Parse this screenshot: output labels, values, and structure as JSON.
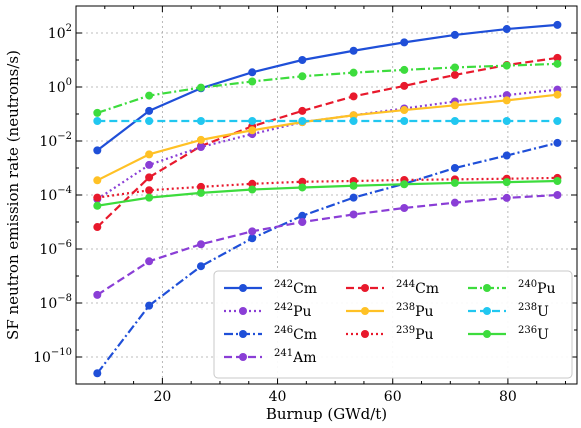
{
  "chart_data": {
    "type": "line",
    "title": "",
    "xlabel": "Burnup (GWd/t)",
    "ylabel": "SF neutron emission rate (neutrons/s)",
    "x": [
      8.7,
      17.7,
      26.7,
      35.6,
      44.3,
      53.2,
      62.0,
      70.8,
      79.8,
      88.6
    ],
    "xlim": [
      5,
      92
    ],
    "xticks": [
      20,
      40,
      60,
      80
    ],
    "ylim": [
      1e-11,
      1000
    ],
    "yscale": "log",
    "yticks": [
      {
        "value": 1e-10,
        "base": "10",
        "exp": "−10"
      },
      {
        "value": 1e-08,
        "base": "10",
        "exp": "−8"
      },
      {
        "value": 1e-06,
        "base": "10",
        "exp": "−6"
      },
      {
        "value": 0.0001,
        "base": "10",
        "exp": "−4"
      },
      {
        "value": 0.01,
        "base": "10",
        "exp": "−2"
      },
      {
        "value": 1,
        "base": "10",
        "exp": "0"
      },
      {
        "value": 100,
        "base": "10",
        "exp": "2"
      }
    ],
    "grid": true,
    "legend_position": "lower-right",
    "series": [
      {
        "name": "Cm",
        "mass": "242",
        "color": "#1f4fd8",
        "dash": "solid",
        "values": [
          0.0045,
          0.13,
          0.9,
          3.5,
          10,
          22,
          45,
          85,
          140,
          200
        ]
      },
      {
        "name": "Cm",
        "mass": "244",
        "color": "#e8192c",
        "dash": "dash",
        "values": [
          6.5e-06,
          0.00045,
          0.0065,
          0.035,
          0.13,
          0.45,
          1.1,
          2.8,
          6.5,
          12
        ]
      },
      {
        "name": "Pu",
        "mass": "240",
        "color": "#3ddc3d",
        "dash": "dashdot",
        "values": [
          0.11,
          0.48,
          0.95,
          1.6,
          2.5,
          3.4,
          4.3,
          5.3,
          6.2,
          7.2
        ]
      },
      {
        "name": "Pu",
        "mass": "242",
        "color": "#8a3ed6",
        "dash": "dot",
        "values": [
          7e-05,
          0.0013,
          0.006,
          0.018,
          0.05,
          0.09,
          0.16,
          0.29,
          0.5,
          0.8
        ]
      },
      {
        "name": "Pu",
        "mass": "238",
        "color": "#ffc125",
        "dash": "solid",
        "values": [
          0.00035,
          0.0032,
          0.011,
          0.025,
          0.05,
          0.09,
          0.14,
          0.21,
          0.32,
          0.52
        ]
      },
      {
        "name": "U",
        "mass": "238",
        "color": "#21c7f0",
        "dash": "dash",
        "values": [
          0.055,
          0.055,
          0.055,
          0.055,
          0.055,
          0.055,
          0.055,
          0.055,
          0.055,
          0.055
        ]
      },
      {
        "name": "Cm",
        "mass": "246",
        "color": "#1f4fd8",
        "dash": "dashdot",
        "values": [
          2.5e-11,
          8e-09,
          2.3e-07,
          2.5e-06,
          1.7e-05,
          8e-05,
          0.00026,
          0.001,
          0.0029,
          0.0085
        ]
      },
      {
        "name": "Pu",
        "mass": "239",
        "color": "#e8192c",
        "dash": "dot",
        "values": [
          8e-05,
          0.00015,
          0.0002,
          0.00026,
          0.00031,
          0.00033,
          0.00036,
          0.00038,
          0.0004,
          0.00043
        ]
      },
      {
        "name": "U",
        "mass": "236",
        "color": "#3ddc3d",
        "dash": "solid",
        "values": [
          4e-05,
          8e-05,
          0.00012,
          0.00016,
          0.00019,
          0.00022,
          0.00025,
          0.00028,
          0.0003,
          0.00033
        ]
      },
      {
        "name": "Am",
        "mass": "241",
        "color": "#8a3ed6",
        "dash": "dash",
        "values": [
          2e-08,
          3.5e-07,
          1.5e-06,
          4.5e-06,
          1e-05,
          1.9e-05,
          3.3e-05,
          5.2e-05,
          7.8e-05,
          0.0001
        ]
      }
    ]
  }
}
